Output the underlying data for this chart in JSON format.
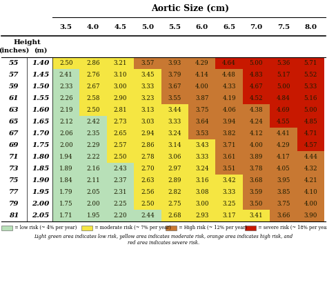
{
  "title": "Aortic Size (cm)",
  "col_headers": [
    "3.5",
    "4.0",
    "4.5",
    "5.0",
    "5.5",
    "6.0",
    "6.5",
    "7.0",
    "7.5",
    "8.0"
  ],
  "row_headers_inches": [
    "55",
    "57",
    "59",
    "61",
    "63",
    "65",
    "67",
    "69",
    "71",
    "73",
    "75",
    "77",
    "79",
    "81"
  ],
  "row_headers_m": [
    "1.40",
    "1.45",
    "1.50",
    "1.55",
    "1.60",
    "1.65",
    "1.70",
    "1.75",
    "1.80",
    "1.85",
    "1.90",
    "1.95",
    "2.00",
    "2.05"
  ],
  "values": [
    [
      2.5,
      2.86,
      3.21,
      3.57,
      3.93,
      4.29,
      4.64,
      5.0,
      5.36,
      5.71
    ],
    [
      2.41,
      2.76,
      3.1,
      3.45,
      3.79,
      4.14,
      4.48,
      4.83,
      5.17,
      5.52
    ],
    [
      2.33,
      2.67,
      3.0,
      3.33,
      3.67,
      4.0,
      4.33,
      4.67,
      5.0,
      5.33
    ],
    [
      2.26,
      2.58,
      2.9,
      3.23,
      3.55,
      3.87,
      4.19,
      4.52,
      4.84,
      5.16
    ],
    [
      2.19,
      2.5,
      2.81,
      3.13,
      3.44,
      3.75,
      4.06,
      4.38,
      4.69,
      5.0
    ],
    [
      2.12,
      2.42,
      2.73,
      3.03,
      3.33,
      3.64,
      3.94,
      4.24,
      4.55,
      4.85
    ],
    [
      2.06,
      2.35,
      2.65,
      2.94,
      3.24,
      3.53,
      3.82,
      4.12,
      4.41,
      4.71
    ],
    [
      2.0,
      2.29,
      2.57,
      2.86,
      3.14,
      3.43,
      3.71,
      4.0,
      4.29,
      4.57
    ],
    [
      1.94,
      2.22,
      2.5,
      2.78,
      3.06,
      3.33,
      3.61,
      3.89,
      4.17,
      4.44
    ],
    [
      1.89,
      2.16,
      2.43,
      2.7,
      2.97,
      3.24,
      3.51,
      3.78,
      4.05,
      4.32
    ],
    [
      1.84,
      2.11,
      2.37,
      2.63,
      2.89,
      3.16,
      3.42,
      3.68,
      3.95,
      4.21
    ],
    [
      1.79,
      2.05,
      2.31,
      2.56,
      2.82,
      3.08,
      3.33,
      3.59,
      3.85,
      4.1
    ],
    [
      1.75,
      2.0,
      2.25,
      2.5,
      2.75,
      3.0,
      3.25,
      3.5,
      3.75,
      4.0
    ],
    [
      1.71,
      1.95,
      2.2,
      2.44,
      2.68,
      2.93,
      3.17,
      3.41,
      3.66,
      3.9
    ]
  ],
  "color_low": "#b8e0b8",
  "color_moderate": "#f5e642",
  "color_high": "#c87832",
  "color_severe": "#c81800",
  "thresh_low_mod": 2.5,
  "thresh_mod_high": 3.5,
  "thresh_high_severe": 4.5,
  "legend_items": [
    {
      "color": "#b8e0b8",
      "label": " = low risk (~ 4% per year)"
    },
    {
      "color": "#f5e642",
      "label": " = moderate risk (~ 7% per year)"
    },
    {
      "color": "#c87832",
      "label": " = High risk (~ 12% per year)"
    },
    {
      "color": "#c81800",
      "label": " = severe risk (~ 18% per year)"
    }
  ],
  "footnote_line1": "Light green area indicates low risk, yellow area indicates moderate risk, orange area indicates high risk, and",
  "footnote_line2": "red area indicates severe risk.",
  "bg_color": "#f5f5f0"
}
